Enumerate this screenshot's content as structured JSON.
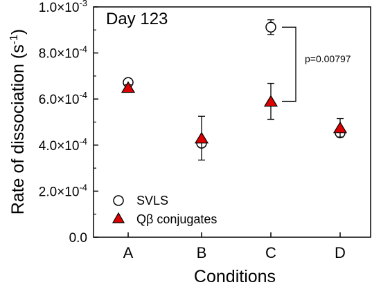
{
  "chart_data": {
    "type": "scatter",
    "title": "Day 123",
    "xlabel": "Conditions",
    "ylabel_main": "Rate of dissociation (s",
    "ylabel_sup": "-1",
    "ylabel_close": ")",
    "categories": [
      "A",
      "B",
      "C",
      "D"
    ],
    "ylim": [
      0,
      0.001
    ],
    "y_ticks": [
      0,
      0.0002,
      0.0004,
      0.0006,
      0.0008,
      0.001
    ],
    "y_tick_labels": [
      {
        "base": "0.0",
        "exp": ""
      },
      {
        "base": "2.0×10",
        "exp": "-4"
      },
      {
        "base": "4.0×10",
        "exp": "-4"
      },
      {
        "base": "6.0×10",
        "exp": "-4"
      },
      {
        "base": "8.0×10",
        "exp": "-4"
      },
      {
        "base": "1.0×10",
        "exp": "-3"
      }
    ],
    "grid": false,
    "legend_position": "bottom-left",
    "series": [
      {
        "name": "SVLS",
        "marker": "circle",
        "color": "#ffffff",
        "edge_color": "#000000",
        "values": [
          0.000672,
          0.000408,
          0.000912,
          0.000453
        ],
        "error": [
          1.2e-05,
          0.0,
          3.2e-05,
          0.0
        ]
      },
      {
        "name": "Qβ conjugates",
        "marker": "triangle",
        "color": "#dd0000",
        "edge_color": "#000000",
        "values": [
          0.00065,
          0.00043,
          0.00059,
          0.000475
        ],
        "error": [
          1.2e-05,
          9.5e-05,
          7.8e-05,
          4e-05
        ]
      }
    ],
    "annotations": [
      {
        "text": "p=0.00797",
        "between": "C"
      }
    ]
  }
}
